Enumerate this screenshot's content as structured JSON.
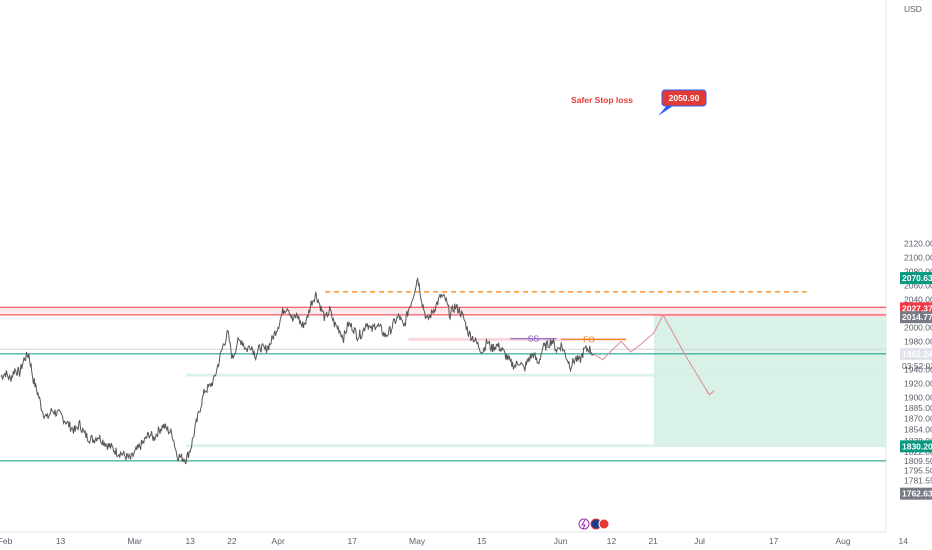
{
  "chart_data": {
    "type": "line",
    "title": "",
    "currency": "USD",
    "ylim": [
      1750,
      2130
    ],
    "y_ticks": [
      {
        "value": 2120,
        "label": "2120.00"
      },
      {
        "value": 2100,
        "label": "2100.00"
      },
      {
        "value": 2080,
        "label": "2080.00"
      },
      {
        "value": 2060,
        "label": "2060.00"
      },
      {
        "value": 2040,
        "label": "2040.00"
      },
      {
        "value": 2000,
        "label": "2000.00"
      },
      {
        "value": 1980,
        "label": "1980.00"
      },
      {
        "value": 1940,
        "label": "1940.00"
      },
      {
        "value": 1920,
        "label": "1920.00"
      },
      {
        "value": 1900,
        "label": "1900.00"
      },
      {
        "value": 1885,
        "label": "1885.00"
      },
      {
        "value": 1870,
        "label": "1870.00"
      },
      {
        "value": 1854,
        "label": "1854.00"
      },
      {
        "value": 1838,
        "label": "1838.00"
      },
      {
        "value": 1822,
        "label": "1822.00"
      },
      {
        "value": 1809.5,
        "label": "1809.50"
      },
      {
        "value": 1795.5,
        "label": "1795.50"
      },
      {
        "value": 1781.55,
        "label": "1781.55"
      }
    ],
    "x_ticks": [
      {
        "day": 0,
        "label": "Feb"
      },
      {
        "day": 12,
        "label": "13"
      },
      {
        "day": 28,
        "label": "Mar"
      },
      {
        "day": 40,
        "label": "13"
      },
      {
        "day": 49,
        "label": "22"
      },
      {
        "day": 59,
        "label": "Apr"
      },
      {
        "day": 75,
        "label": "17"
      },
      {
        "day": 89,
        "label": "May"
      },
      {
        "day": 103,
        "label": "15"
      },
      {
        "day": 120,
        "label": "Jun"
      },
      {
        "day": 131,
        "label": "12"
      },
      {
        "day": 140,
        "label": "21"
      },
      {
        "day": 150,
        "label": "Jul"
      },
      {
        "day": 166,
        "label": "17"
      },
      {
        "day": 181,
        "label": "Aug"
      },
      {
        "day": 194,
        "label": "14"
      }
    ],
    "price_badges": [
      {
        "value": 2070.63,
        "label": "2070.63",
        "color": "#089981"
      },
      {
        "value": 2027.37,
        "label": "2027.37",
        "color": "#f23645"
      },
      {
        "value": 2014.77,
        "label": "2014.77",
        "color": "#787b86"
      },
      {
        "value": 1962.24,
        "label": "1962.24",
        "color": "#e0e3eb"
      },
      {
        "value": 1830.2,
        "label": "1830.20",
        "color": "#089981"
      },
      {
        "value": 1762.63,
        "label": "1762.63",
        "color": "#787b86"
      }
    ],
    "countdown": "03:52:02",
    "series": [
      {
        "values": [
          [
            0,
            1930
          ],
          [
            1,
            1935
          ],
          [
            2,
            1926
          ],
          [
            3,
            1940
          ],
          [
            4,
            1935
          ],
          [
            5,
            1955
          ],
          [
            6,
            1962
          ],
          [
            7,
            1925
          ],
          [
            8,
            1905
          ],
          [
            9,
            1880
          ],
          [
            10,
            1870
          ],
          [
            11,
            1882
          ],
          [
            12,
            1878
          ],
          [
            13,
            1874
          ],
          [
            14,
            1866
          ],
          [
            15,
            1858
          ],
          [
            16,
            1852
          ],
          [
            17,
            1862
          ],
          [
            18,
            1848
          ],
          [
            19,
            1842
          ],
          [
            20,
            1840
          ],
          [
            21,
            1845
          ],
          [
            22,
            1838
          ],
          [
            23,
            1832
          ],
          [
            24,
            1828
          ],
          [
            25,
            1822
          ],
          [
            26,
            1820
          ],
          [
            27,
            1816
          ],
          [
            28,
            1812
          ],
          [
            29,
            1822
          ],
          [
            30,
            1830
          ],
          [
            31,
            1838
          ],
          [
            32,
            1848
          ],
          [
            33,
            1842
          ],
          [
            34,
            1852
          ],
          [
            35,
            1860
          ],
          [
            36,
            1854
          ],
          [
            37,
            1848
          ],
          [
            38,
            1818
          ],
          [
            39,
            1814
          ],
          [
            40,
            1812
          ],
          [
            41,
            1828
          ],
          [
            42,
            1858
          ],
          [
            43,
            1885
          ],
          [
            44,
            1910
          ],
          [
            45,
            1915
          ],
          [
            46,
            1925
          ],
          [
            47,
            1950
          ],
          [
            48,
            1975
          ],
          [
            49,
            1992
          ],
          [
            50,
            1955
          ],
          [
            51,
            1978
          ],
          [
            52,
            1982
          ],
          [
            53,
            1968
          ],
          [
            54,
            1975
          ],
          [
            55,
            1960
          ],
          [
            56,
            1972
          ],
          [
            57,
            1968
          ],
          [
            58,
            1975
          ],
          [
            59,
            1990
          ],
          [
            60,
            2005
          ],
          [
            61,
            2025
          ],
          [
            62,
            2030
          ],
          [
            63,
            2010
          ],
          [
            64,
            2018
          ],
          [
            65,
            2002
          ],
          [
            66,
            2010
          ],
          [
            67,
            2035
          ],
          [
            68,
            2048
          ],
          [
            69,
            2030
          ],
          [
            70,
            2012
          ],
          [
            71,
            2025
          ],
          [
            72,
            2005
          ],
          [
            73,
            1998
          ],
          [
            74,
            1985
          ],
          [
            75,
            2005
          ],
          [
            76,
            2000
          ],
          [
            77,
            1988
          ],
          [
            78,
            1992
          ],
          [
            79,
            2008
          ],
          [
            80,
            1995
          ],
          [
            81,
            2005
          ],
          [
            82,
            1998
          ],
          [
            83,
            1988
          ],
          [
            84,
            1995
          ],
          [
            85,
            2008
          ],
          [
            86,
            2016
          ],
          [
            87,
            2000
          ],
          [
            88,
            2025
          ],
          [
            89,
            2045
          ],
          [
            90,
            2072
          ],
          [
            91,
            2035
          ],
          [
            92,
            2010
          ],
          [
            93,
            2020
          ],
          [
            94,
            2032
          ],
          [
            95,
            2045
          ],
          [
            96,
            2040
          ],
          [
            97,
            2018
          ],
          [
            98,
            2030
          ],
          [
            99,
            2025
          ],
          [
            100,
            2012
          ],
          [
            101,
            1992
          ],
          [
            102,
            1985
          ],
          [
            103,
            1975
          ],
          [
            104,
            1966
          ],
          [
            105,
            1980
          ],
          [
            106,
            1970
          ],
          [
            107,
            1975
          ],
          [
            108,
            1970
          ],
          [
            109,
            1960
          ],
          [
            110,
            1950
          ],
          [
            111,
            1945
          ],
          [
            112,
            1952
          ],
          [
            113,
            1940
          ],
          [
            114,
            1955
          ],
          [
            115,
            1962
          ],
          [
            116,
            1948
          ],
          [
            117,
            1970
          ],
          [
            118,
            1975
          ],
          [
            119,
            1982
          ],
          [
            120,
            1968
          ],
          [
            121,
            1975
          ],
          [
            122,
            1960
          ],
          [
            123,
            1945
          ],
          [
            124,
            1955
          ],
          [
            125,
            1952
          ],
          [
            126,
            1968
          ],
          [
            127,
            1970
          ],
          [
            128,
            1962
          ]
        ]
      }
    ],
    "projection": [
      [
        128,
        1962
      ],
      [
        130,
        1954
      ],
      [
        132,
        1968
      ],
      [
        134,
        1980
      ],
      [
        136,
        1965
      ],
      [
        138,
        1975
      ],
      [
        141,
        1992
      ],
      [
        143,
        2018
      ],
      [
        148,
        1958
      ],
      [
        153,
        1904
      ]
    ],
    "levels": {
      "safer_stop_loss": 2050.9,
      "resistance_zone": [
        2018,
        2029
      ],
      "entry": 2014.77,
      "target": 1830.2,
      "support_zones": [
        [
          1829,
          1833
        ],
        [
          1930,
          1934
        ]
      ],
      "green_lines": [
        1962.24,
        1809.5
      ],
      "ss_level": 1984,
      "fo_level": 1983
    },
    "position": {
      "start_day": 141,
      "entry": 2014.77,
      "stop": 2027.37,
      "target": 1830.2
    },
    "annotations": {
      "stop_loss_label": "Safer Stop loss",
      "stop_loss_value": "2050.90",
      "ss_label": "SS",
      "fo_label": "FO"
    },
    "colors": {
      "price": "#555555",
      "red_line": "#f23645",
      "stop_line": "#f57c00",
      "green_line": "#089981",
      "zone_green": "#d6efe5",
      "zone_red": "#fbd2d6",
      "projection": "#d98c99",
      "ss": "#7e57c2"
    }
  }
}
